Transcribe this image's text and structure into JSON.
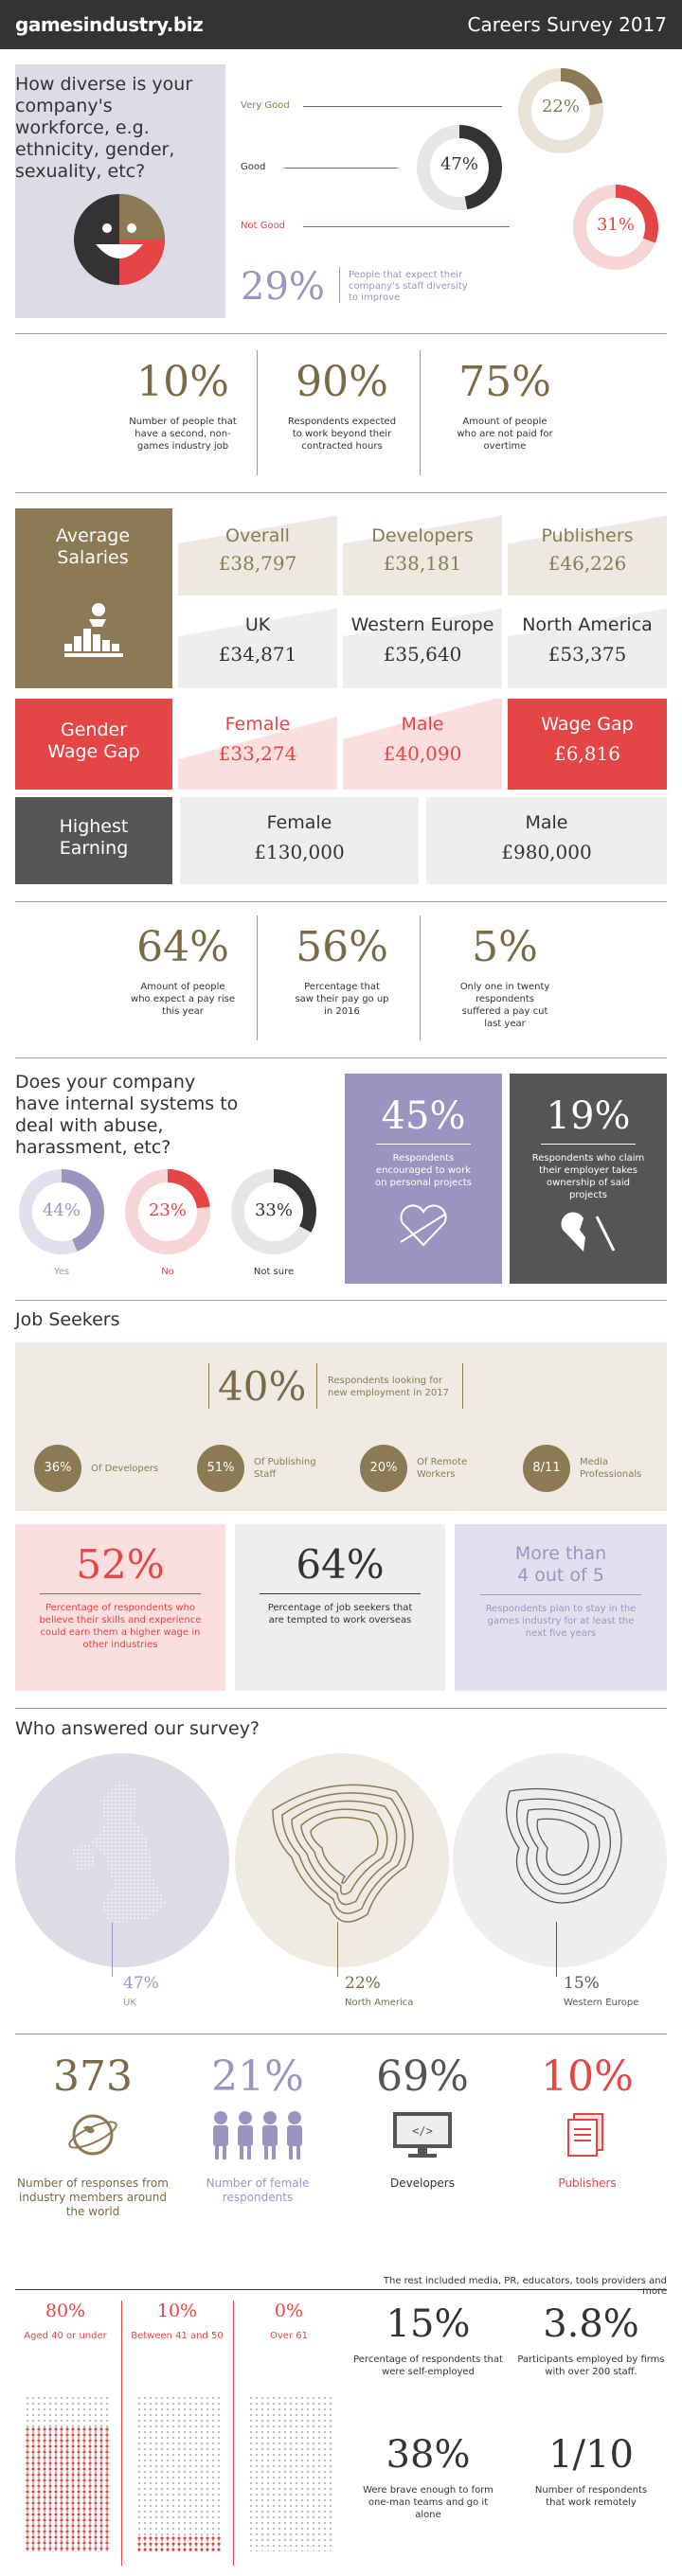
{
  "header": {
    "logo": "gamesindustry.biz",
    "title": "Careers Survey 2017"
  },
  "diversity": {
    "question": "How diverse is your company's workforce, e.g. ethnicity, gender, sexuality, etc?",
    "rows": [
      {
        "label": "Very Good",
        "value": "22%",
        "fraction": 0.22,
        "color": "#8b7a54"
      },
      {
        "label": "Good",
        "value": "47%",
        "fraction": 0.47,
        "color": "#333333"
      },
      {
        "label": "Not Good",
        "value": "31%",
        "fraction": 0.31,
        "color": "#e54545"
      }
    ],
    "expect_value": "29%",
    "expect_text": "People that expect their company's staff diversity to improve"
  },
  "stats1": [
    {
      "value": "10%",
      "text": "Number of people that have a second, non-games industry job"
    },
    {
      "value": "90%",
      "text": "Respondents expected to work beyond their contracted hours"
    },
    {
      "value": "75%",
      "text": "Amount of people who are not paid for overtime"
    }
  ],
  "salaries": {
    "title": "Average Salaries",
    "cols": [
      {
        "label": "Overall",
        "value": "£38,797"
      },
      {
        "label": "Developers",
        "value": "£38,181"
      },
      {
        "label": "Publishers",
        "value": "£46,226"
      }
    ],
    "regions": [
      {
        "label": "UK",
        "value": "£34,871"
      },
      {
        "label": "Western Europe",
        "value": "£35,640"
      },
      {
        "label": "North America",
        "value": "£53,375"
      }
    ]
  },
  "gender_gap": {
    "title": "Gender Wage Gap",
    "cols": [
      {
        "label": "Female",
        "value": "£33,274"
      },
      {
        "label": "Male",
        "value": "£40,090"
      },
      {
        "label": "Wage Gap",
        "value": "£6,816"
      }
    ]
  },
  "highest": {
    "title": "Highest Earning",
    "cols": [
      {
        "label": "Female",
        "value": "£130,000"
      },
      {
        "label": "Male",
        "value": "£980,000"
      }
    ]
  },
  "stats2": [
    {
      "value": "64%",
      "text": "Amount of people who expect a pay rise this year"
    },
    {
      "value": "56%",
      "text": "Percentage that saw their pay go up in 2016"
    },
    {
      "value": "5%",
      "text": "Only one in twenty respondents suffered a pay cut last year"
    }
  ],
  "abuse": {
    "question": "Does your company have internal systems to deal with abuse, harassment, etc?",
    "rings": [
      {
        "value": "44%",
        "label": "Yes",
        "fraction": 0.44,
        "color": "#9b94c0"
      },
      {
        "value": "23%",
        "label": "No",
        "fraction": 0.23,
        "color": "#e54545"
      },
      {
        "value": "33%",
        "label": "Not sure",
        "fraction": 0.33,
        "color": "#333333"
      }
    ],
    "box1": {
      "value": "45%",
      "text": "Respondents encouraged to work on personal projects"
    },
    "box2": {
      "value": "19%",
      "text": "Respondents who claim their employer takes ownership of said projects"
    }
  },
  "jobseekers": {
    "title": "Job Seekers",
    "main_value": "40%",
    "main_text": "Respondents looking for new employment in 2017",
    "circles": [
      {
        "value": "36%",
        "label": "Of Developers"
      },
      {
        "value": "51%",
        "label": "Of Publishing Staff"
      },
      {
        "value": "20%",
        "label": "Of Remote Workers"
      },
      {
        "value": "8/11",
        "label": "Media Professionals"
      }
    ],
    "box1": {
      "value": "52%",
      "text": "Percentage of respondents who believe their skills and experience could earn them a higher wage in other industries"
    },
    "box2": {
      "value": "64%",
      "text": "Percentage of job seekers that are tempted to work overseas"
    },
    "box3": {
      "value": "More than 4 out of 5",
      "text": "Respondents plan to stay in the games industry for at least the next five years"
    }
  },
  "who": {
    "title": "Who answered our survey?",
    "regions": [
      {
        "value": "47%",
        "label": "UK"
      },
      {
        "value": "22%",
        "label": "North America"
      },
      {
        "value": "15%",
        "label": "Western Europe"
      }
    ],
    "counts": [
      {
        "value": "373",
        "label": "Number of responses from industry members around the world"
      },
      {
        "value": "21%",
        "label": "Number of female respondents"
      },
      {
        "value": "69%",
        "label": "Developers"
      },
      {
        "value": "10%",
        "label": "Publishers"
      }
    ],
    "rest_note": "The rest included media, PR, educators, tools providers and more"
  },
  "age": [
    {
      "value": "80%",
      "label": "Aged 40 or under",
      "fraction": 0.8
    },
    {
      "value": "10%",
      "label": "Between 41 and 50",
      "fraction": 0.1
    },
    {
      "value": "0%",
      "label": "Over 61",
      "fraction": 0.0
    }
  ],
  "final": [
    {
      "value": "15%",
      "text": "Percentage of respondents that were self-employed"
    },
    {
      "value": "3.8%",
      "text": "Participants employed by firms with over 200 staff."
    },
    {
      "value": "38%",
      "text": "Were brave enough to form one-man teams and go it alone"
    },
    {
      "value": "1/10",
      "text": "Number of respondents that work remotely"
    }
  ]
}
